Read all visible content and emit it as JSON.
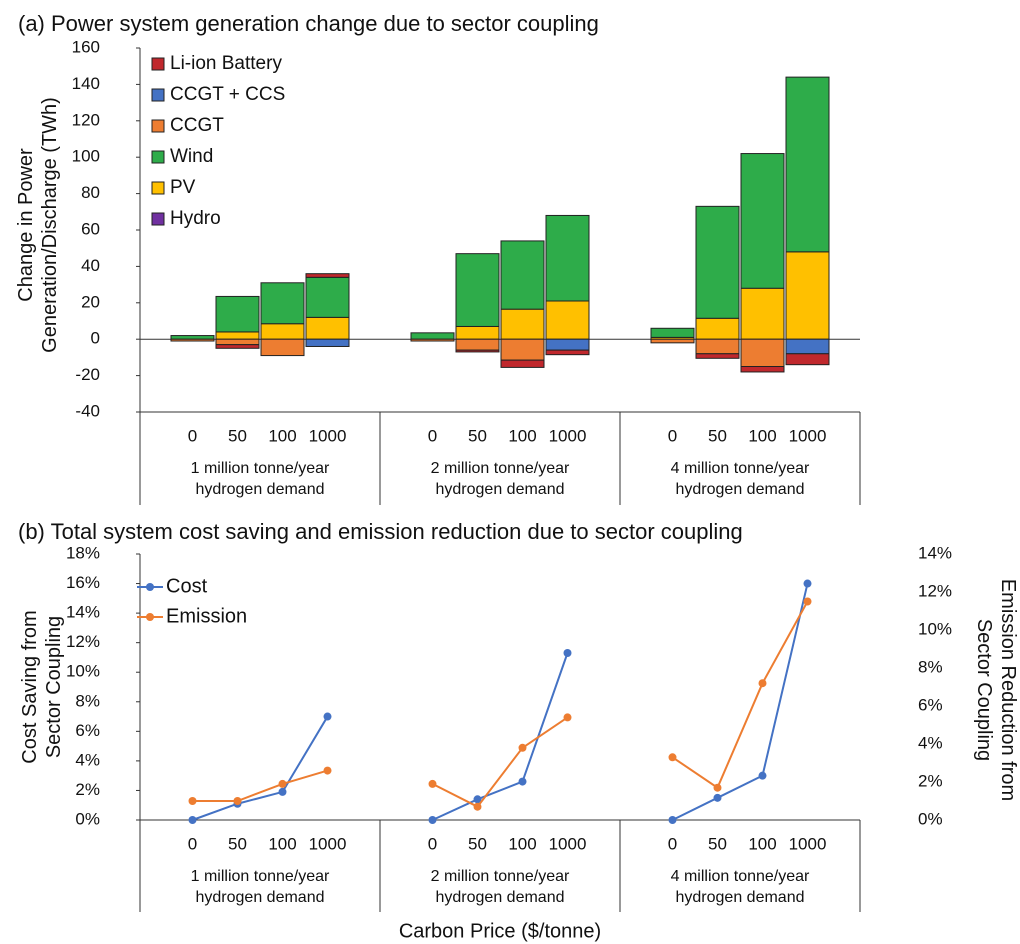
{
  "chart_data": [
    {
      "type": "bar",
      "stacked": true,
      "title": "(a) Power system generation change due to sector coupling",
      "y_label": "Change in Power Generation/Discharge (TWh)",
      "categories": [
        "0",
        "50",
        "100",
        "1000",
        "0",
        "50",
        "100",
        "1000",
        "0",
        "50",
        "100",
        "1000"
      ],
      "groups": [
        "1 million tonne/year hydrogen demand",
        "2 million tonne/year hydrogen demand",
        "4 million tonne/year hydrogen demand"
      ],
      "series": [
        {
          "name": "Li-ion Battery",
          "color": "#c0282d",
          "values": [
            0,
            -2,
            0,
            2,
            0,
            -1,
            -4,
            -2.5,
            0,
            -2.5,
            -3,
            -6
          ]
        },
        {
          "name": "CCGT + CCS",
          "color": "#4472c4",
          "values": [
            0,
            0,
            0,
            -4,
            0,
            0,
            0,
            -6,
            0,
            0,
            0,
            -8
          ]
        },
        {
          "name": "CCGT",
          "color": "#ed7d31",
          "values": [
            -1,
            -3,
            -9,
            0,
            -1,
            -6,
            -11.5,
            0,
            -2,
            -8,
            -15,
            0
          ]
        },
        {
          "name": "Wind",
          "color": "#2eac4a",
          "values": [
            2,
            19.5,
            22.5,
            22,
            3.5,
            40,
            37.5,
            47,
            5,
            61.5,
            74,
            96
          ]
        },
        {
          "name": "PV",
          "color": "#ffc000",
          "values": [
            0,
            4,
            8.5,
            12,
            0,
            7,
            16.5,
            21,
            1,
            11.5,
            28,
            48
          ]
        },
        {
          "name": "Hydro",
          "color": "#7030a0",
          "values": [
            0,
            0,
            0,
            0,
            0,
            0,
            0,
            0,
            0,
            0,
            0,
            0
          ]
        }
      ],
      "ylim": [
        -40,
        160
      ],
      "yticks": [
        -40,
        -20,
        0,
        20,
        40,
        60,
        80,
        100,
        120,
        140,
        160
      ],
      "legend": "upper left"
    },
    {
      "type": "line",
      "title": "(b) Total system cost saving and emission reduction due to sector coupling",
      "x_label": "Carbon Price ($/tonne)",
      "y_label": "Cost Saving from Sector Coupling",
      "y2_label": "Emission Reduction from Sector Coupling",
      "categories": [
        "0",
        "50",
        "100",
        "1000",
        "0",
        "50",
        "100",
        "1000",
        "0",
        "50",
        "100",
        "1000"
      ],
      "groups": [
        "1 million tonne/year hydrogen demand",
        "2 million tonne/year hydrogen demand",
        "4 million tonne/year hydrogen demand"
      ],
      "series": [
        {
          "name": "Cost",
          "color": "#4472c4",
          "values": [
            0,
            1.1,
            1.9,
            7,
            0,
            1.4,
            2.6,
            11.3,
            0,
            1.5,
            3,
            16
          ]
        },
        {
          "name": "Emission",
          "color": "#ed7d31",
          "axis": "y2",
          "values": [
            1,
            1,
            1.9,
            2.6,
            1.9,
            0.7,
            3.8,
            5.4,
            3.3,
            1.7,
            7.2,
            11.5
          ]
        }
      ],
      "ylim": [
        0,
        18
      ],
      "yticks": [
        {
          "value": 0,
          "label": "0%"
        },
        {
          "value": 2,
          "label": "2%"
        },
        {
          "value": 4,
          "label": "4%"
        },
        {
          "value": 6,
          "label": "6%"
        },
        {
          "value": 8,
          "label": "8%"
        },
        {
          "value": 10,
          "label": "10%"
        },
        {
          "value": 12,
          "label": "12%"
        },
        {
          "value": 14,
          "label": "14%"
        },
        {
          "value": 16,
          "label": "16%"
        },
        {
          "value": 18,
          "label": "18%"
        }
      ],
      "y2lim": [
        0,
        14
      ],
      "y2ticks": [
        {
          "value": 0,
          "label": "0%"
        },
        {
          "value": 2,
          "label": "2%"
        },
        {
          "value": 4,
          "label": "4%"
        },
        {
          "value": 6,
          "label": "6%"
        },
        {
          "value": 8,
          "label": "8%"
        },
        {
          "value": 10,
          "label": "10%"
        },
        {
          "value": 12,
          "label": "12%"
        },
        {
          "value": 14,
          "label": "14%"
        }
      ],
      "legend": "upper left"
    }
  ]
}
